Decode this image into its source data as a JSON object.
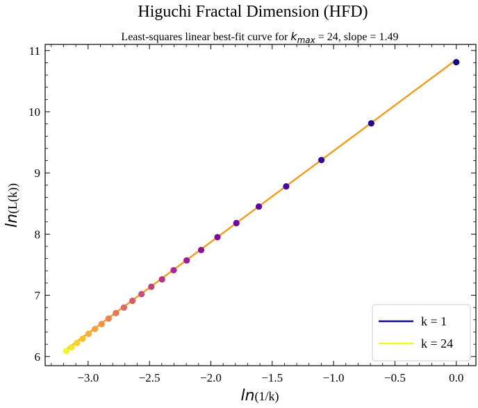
{
  "chart_data": {
    "type": "scatter",
    "title": "Higuchi Fractal Dimension (HFD)",
    "subtitle": "Least-squares linear best-fit curve for k_max = 24, slope = 1.49",
    "subtitle_parts": {
      "prefix": "Least-squares linear best-fit curve for ",
      "var_main": "k",
      "var_sub": "max",
      "suffix": " = 24, slope = 1.49"
    },
    "xlabel": {
      "ln": "ln",
      "arg": "(1/k)"
    },
    "ylabel": {
      "ln": "ln",
      "arg": "(L(k))"
    },
    "xlim": [
      -3.35,
      0.16
    ],
    "ylim": [
      5.85,
      11.1
    ],
    "x_ticks": [
      -3.0,
      -2.5,
      -2.0,
      -1.5,
      -1.0,
      -0.5,
      0.0
    ],
    "x_tick_labels": [
      "−3.0",
      "−2.5",
      "−2.0",
      "−1.5",
      "−1.0",
      "−0.5",
      "0.0"
    ],
    "y_ticks": [
      6,
      7,
      8,
      9,
      10,
      11
    ],
    "y_tick_labels": [
      "6",
      "7",
      "8",
      "9",
      "10",
      "11"
    ],
    "grid": false,
    "legend_position": "lower-right",
    "legend": [
      {
        "label": "k = 1",
        "color": "#0d0887"
      },
      {
        "label": "k = 24",
        "color": "#f0f921"
      }
    ],
    "fit_line": {
      "slope": 1.49,
      "intercept": 10.85,
      "color": "#f59b16"
    },
    "k_max": 24,
    "points": [
      {
        "k": 1,
        "x": 0.0,
        "y": 10.81
      },
      {
        "k": 2,
        "x": -0.693,
        "y": 9.81
      },
      {
        "k": 3,
        "x": -1.099,
        "y": 9.21
      },
      {
        "k": 4,
        "x": -1.386,
        "y": 8.78
      },
      {
        "k": 5,
        "x": -1.609,
        "y": 8.45
      },
      {
        "k": 6,
        "x": -1.792,
        "y": 8.18
      },
      {
        "k": 7,
        "x": -1.946,
        "y": 7.95
      },
      {
        "k": 8,
        "x": -2.079,
        "y": 7.74
      },
      {
        "k": 9,
        "x": -2.197,
        "y": 7.57
      },
      {
        "k": 10,
        "x": -2.303,
        "y": 7.41
      },
      {
        "k": 11,
        "x": -2.398,
        "y": 7.26
      },
      {
        "k": 12,
        "x": -2.485,
        "y": 7.14
      },
      {
        "k": 13,
        "x": -2.565,
        "y": 7.02
      },
      {
        "k": 14,
        "x": -2.639,
        "y": 6.91
      },
      {
        "k": 15,
        "x": -2.708,
        "y": 6.8
      },
      {
        "k": 16,
        "x": -2.773,
        "y": 6.71
      },
      {
        "k": 17,
        "x": -2.833,
        "y": 6.62
      },
      {
        "k": 18,
        "x": -2.89,
        "y": 6.53
      },
      {
        "k": 19,
        "x": -2.944,
        "y": 6.45
      },
      {
        "k": 20,
        "x": -2.996,
        "y": 6.37
      },
      {
        "k": 21,
        "x": -3.045,
        "y": 6.29
      },
      {
        "k": 22,
        "x": -3.091,
        "y": 6.22
      },
      {
        "k": 23,
        "x": -3.135,
        "y": 6.15
      },
      {
        "k": 24,
        "x": -3.178,
        "y": 6.09
      }
    ]
  }
}
